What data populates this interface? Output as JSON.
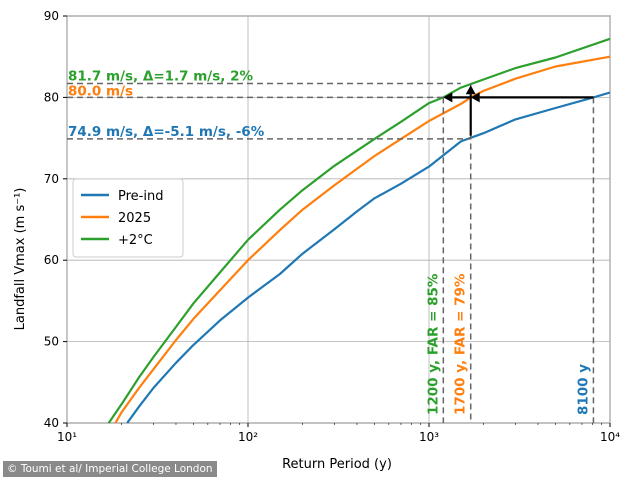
{
  "credit": "© Toumi et al/ Imperial College London",
  "chart_data": {
    "type": "line",
    "xlabel": "Return Period (y)",
    "ylabel": "Landfall Vmax (m s⁻¹)",
    "xscale": "log",
    "xlim": [
      10,
      10000
    ],
    "ylim": [
      40,
      90
    ],
    "grid": true,
    "legend_position": "center-left",
    "x_ticks": [
      "10¹",
      "10²",
      "10³",
      "10⁴"
    ],
    "y_ticks": [
      40,
      50,
      60,
      70,
      80,
      90
    ],
    "colors": {
      "pre_ind": "#1f77b4",
      "y2025": "#ff7f0e",
      "plus2": "#2ca02c",
      "ref": "#666666",
      "arrow": "#000000"
    },
    "series": [
      {
        "name": "Pre-ind",
        "color": "#1f77b4",
        "x": [
          21.5,
          25,
          30,
          40,
          50,
          70,
          100,
          150,
          200,
          300,
          400,
          500,
          700,
          1000,
          1500,
          2000,
          3000,
          5000,
          8100,
          10000
        ],
        "y": [
          40,
          42,
          44.3,
          47.4,
          49.6,
          52.6,
          55.4,
          58.3,
          60.8,
          63.8,
          66,
          67.6,
          69.4,
          71.5,
          74.6,
          75.6,
          77.3,
          78.7,
          80,
          80.6
        ]
      },
      {
        "name": "2025",
        "color": "#ff7f0e",
        "x": [
          18.5,
          20,
          25,
          30,
          40,
          50,
          70,
          100,
          150,
          200,
          300,
          500,
          700,
          1000,
          1500,
          1700,
          2000,
          3000,
          5000,
          10000
        ],
        "y": [
          40,
          41.3,
          44.3,
          46.6,
          50.2,
          52.8,
          56.3,
          60,
          63.7,
          66.2,
          69.2,
          72.8,
          74.9,
          77.1,
          79.2,
          80,
          80.8,
          82.3,
          83.8,
          85
        ]
      },
      {
        "name": "+2°C",
        "color": "#2ca02c",
        "x": [
          17,
          20,
          25,
          30,
          40,
          50,
          70,
          100,
          150,
          200,
          300,
          500,
          700,
          1000,
          1200,
          1500,
          2000,
          3000,
          5000,
          10000
        ],
        "y": [
          40,
          42.3,
          45.6,
          48.1,
          51.8,
          54.7,
          58.5,
          62.5,
          66.2,
          68.6,
          71.6,
          74.9,
          77,
          79.3,
          80,
          81.2,
          82.2,
          83.6,
          84.9,
          87.2
        ]
      }
    ],
    "reference_lines": [
      {
        "label": "81.7 m/s, Δ=1.7 m/s, 2%",
        "y": 81.7,
        "x_end": 1500,
        "color": "#2ca02c"
      },
      {
        "label": "80.0 m/s",
        "y": 80.0,
        "x_end": 8100,
        "color": "#ff7f0e"
      },
      {
        "label": "74.9 m/s, Δ=-5.1 m/s, -6%",
        "y": 74.9,
        "x_end": 1700,
        "color": "#1f77b4"
      }
    ],
    "vertical_lines": [
      {
        "label": "1200 y, FAR = 85%",
        "x": 1200,
        "y_top": 80.0,
        "color": "#2ca02c"
      },
      {
        "label": "1700 y, FAR = 79%",
        "x": 1700,
        "y_top": 81.7,
        "color": "#ff7f0e"
      },
      {
        "label": "8100 y",
        "x": 8100,
        "y_top": 80.0,
        "color": "#1f77b4"
      }
    ],
    "arrows": [
      {
        "from": [
          8100,
          80
        ],
        "to": [
          1700,
          80
        ]
      },
      {
        "from": [
          1700,
          80
        ],
        "to": [
          1200,
          80
        ]
      },
      {
        "from": [
          1700,
          75.3
        ],
        "to": [
          1700,
          81.5
        ]
      }
    ]
  }
}
